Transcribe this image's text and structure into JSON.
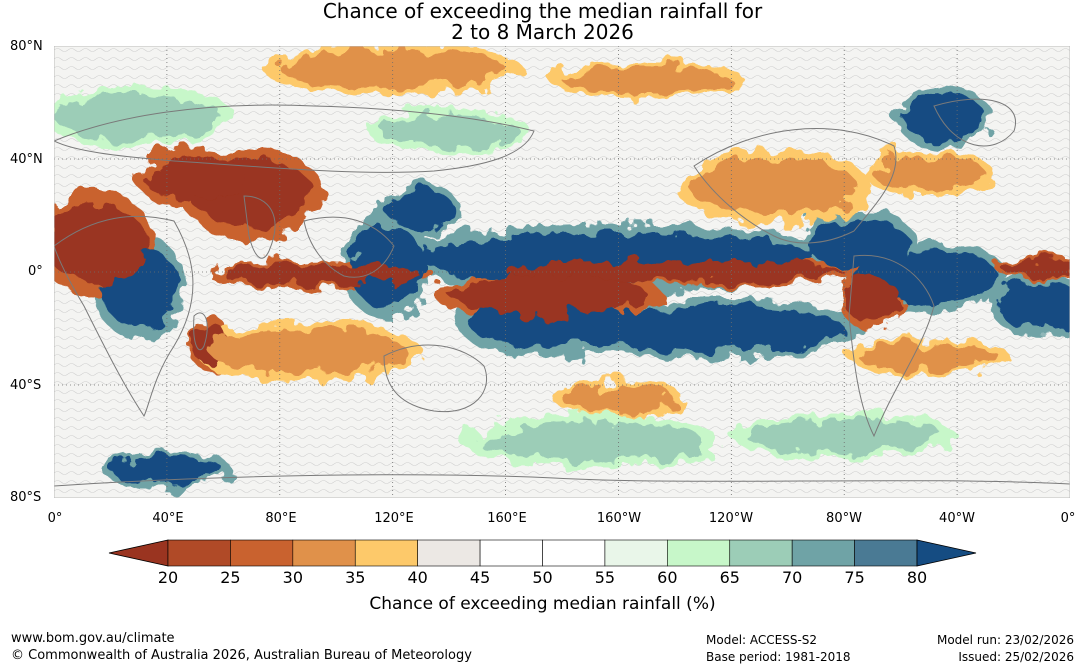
{
  "title": [
    "Chance of exceeding the median rainfall for",
    "2 to 8 March 2026"
  ],
  "y_axis_labels": [
    "80°N",
    "40°N",
    "0°",
    "40°S",
    "80°S"
  ],
  "x_axis_labels": [
    "0°",
    "40°E",
    "80°E",
    "120°E",
    "160°E",
    "160°W",
    "120°W",
    "80°W",
    "40°W",
    "0°"
  ],
  "colorbar": {
    "title": "Chance of exceeding median rainfall (%)",
    "ticks": [
      "20",
      "25",
      "30",
      "35",
      "40",
      "45",
      "50",
      "55",
      "60",
      "65",
      "70",
      "75",
      "80"
    ],
    "colors": [
      "#9a3420",
      "#b04a27",
      "#c9622f",
      "#e0914a",
      "#fdc96a",
      "#ece8e4",
      "#ffffff",
      "#ffffff",
      "#e9f6e9",
      "#c7f7c9",
      "#9ccdb7",
      "#6fa3a6",
      "#4a7a94",
      "#154c82"
    ]
  },
  "footer": {
    "website": "www.bom.gov.au/climate",
    "copyright": "© Commonwealth of Australia 2026, Australian Bureau of Meteorology",
    "model": "Model: ACCESS-S2",
    "base_period": "Base period: 1981-2018",
    "model_run": "Model run: 23/02/2026",
    "issued": "Issued: 25/02/2026"
  },
  "map": {
    "lon_range": [
      0,
      360
    ],
    "lat_range": [
      -80,
      80
    ],
    "grid": true,
    "regions": [
      {
        "cls": "blue",
        "lon": 200,
        "lat": 5,
        "rx": 70,
        "ry": 9
      },
      {
        "cls": "blue",
        "lon": 175,
        "lat": -18,
        "rx": 28,
        "ry": 9
      },
      {
        "cls": "blue",
        "lon": 235,
        "lat": -20,
        "rx": 45,
        "ry": 8
      },
      {
        "cls": "blue",
        "lon": 285,
        "lat": 10,
        "rx": 18,
        "ry": 9
      },
      {
        "cls": "blue",
        "lon": 310,
        "lat": -2,
        "rx": 25,
        "ry": 9
      },
      {
        "cls": "blue",
        "lon": 350,
        "lat": -12,
        "rx": 16,
        "ry": 8
      },
      {
        "cls": "blue",
        "lon": 30,
        "lat": -5,
        "rx": 14,
        "ry": 14
      },
      {
        "cls": "blue",
        "lon": 118,
        "lat": 2,
        "rx": 14,
        "ry": 14
      },
      {
        "cls": "blue",
        "lon": 130,
        "lat": 22,
        "rx": 12,
        "ry": 7
      },
      {
        "cls": "blue",
        "lon": 40,
        "lat": -70,
        "rx": 20,
        "ry": 5
      },
      {
        "cls": "blue",
        "lon": 315,
        "lat": 55,
        "rx": 15,
        "ry": 8
      },
      {
        "cls": "red",
        "lon": 220,
        "lat": 0,
        "rx": 60,
        "ry": 4
      },
      {
        "cls": "red",
        "lon": 175,
        "lat": -8,
        "rx": 35,
        "ry": 7
      },
      {
        "cls": "red",
        "lon": 95,
        "lat": -1,
        "rx": 35,
        "ry": 4
      },
      {
        "cls": "red",
        "lon": 15,
        "lat": 10,
        "rx": 18,
        "ry": 14
      },
      {
        "cls": "red",
        "lon": 70,
        "lat": 28,
        "rx": 22,
        "ry": 12
      },
      {
        "cls": "red",
        "lon": 50,
        "lat": 33,
        "rx": 18,
        "ry": 8
      },
      {
        "cls": "red",
        "lon": 290,
        "lat": -10,
        "rx": 10,
        "ry": 8
      },
      {
        "cls": "red",
        "lon": 350,
        "lat": 1,
        "rx": 14,
        "ry": 3
      },
      {
        "cls": "red",
        "lon": 55,
        "lat": -25,
        "rx": 7,
        "ry": 7
      },
      {
        "cls": "orange",
        "lon": 90,
        "lat": -28,
        "rx": 35,
        "ry": 8
      },
      {
        "cls": "orange",
        "lon": 255,
        "lat": 30,
        "rx": 30,
        "ry": 10
      },
      {
        "cls": "orange",
        "lon": 310,
        "lat": 35,
        "rx": 20,
        "ry": 6
      },
      {
        "cls": "orange",
        "lon": 310,
        "lat": -30,
        "rx": 25,
        "ry": 5
      },
      {
        "cls": "orange",
        "lon": 120,
        "lat": 72,
        "rx": 40,
        "ry": 7
      },
      {
        "cls": "orange",
        "lon": 210,
        "lat": 68,
        "rx": 30,
        "ry": 5
      },
      {
        "cls": "orange",
        "lon": 200,
        "lat": -45,
        "rx": 20,
        "ry": 5
      },
      {
        "cls": "green",
        "lon": 30,
        "lat": 55,
        "rx": 30,
        "ry": 8
      },
      {
        "cls": "green",
        "lon": 140,
        "lat": 50,
        "rx": 25,
        "ry": 6
      },
      {
        "cls": "green",
        "lon": 190,
        "lat": -60,
        "rx": 40,
        "ry": 7
      },
      {
        "cls": "green",
        "lon": 280,
        "lat": -58,
        "rx": 35,
        "ry": 6
      }
    ]
  }
}
